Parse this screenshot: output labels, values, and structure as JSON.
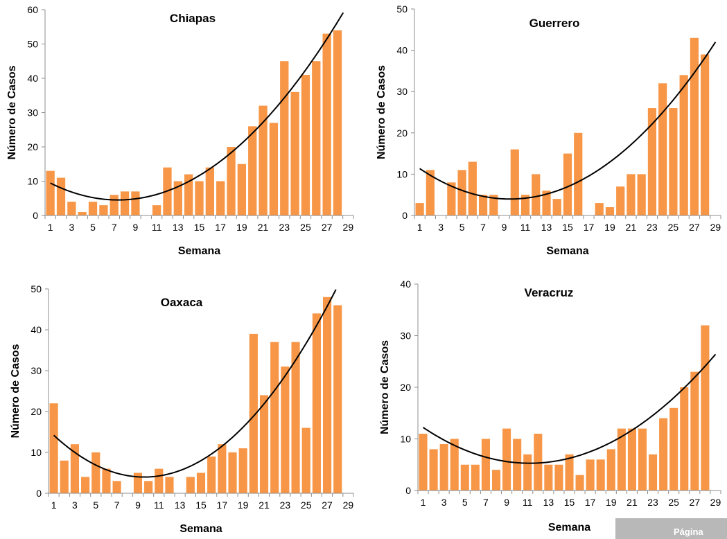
{
  "page_footer": "Página",
  "colors": {
    "bar": "#f79646",
    "trend": "#000000",
    "axis": "#8c8c8c"
  },
  "chart_data": [
    {
      "type": "bar",
      "title": "Chiapas",
      "xlabel": "Semana",
      "ylabel": "Número de Casos",
      "ylim": [
        0,
        60
      ],
      "yticks": [
        0,
        10,
        20,
        30,
        40,
        50,
        60
      ],
      "xticks": [
        1,
        3,
        5,
        7,
        9,
        11,
        13,
        15,
        17,
        19,
        21,
        23,
        25,
        27,
        29
      ],
      "categories": [
        1,
        2,
        3,
        4,
        5,
        6,
        7,
        8,
        9,
        10,
        11,
        12,
        13,
        14,
        15,
        16,
        17,
        18,
        19,
        20,
        21,
        22,
        23,
        24,
        25,
        26,
        27,
        28,
        29
      ],
      "values": [
        13,
        11,
        4,
        1,
        4,
        3,
        6,
        7,
        7,
        0,
        3,
        14,
        10,
        12,
        10,
        14,
        10,
        20,
        15,
        26,
        32,
        27,
        45,
        36,
        41,
        45,
        53,
        54,
        null
      ],
      "trendline": "polynomial (order 2)"
    },
    {
      "type": "bar",
      "title": "Guerrero",
      "xlabel": "Semana",
      "ylabel": "Número de Casos",
      "ylim": [
        0,
        50
      ],
      "yticks": [
        0,
        10,
        20,
        30,
        40,
        50
      ],
      "xticks": [
        1,
        3,
        5,
        7,
        9,
        11,
        13,
        15,
        17,
        19,
        21,
        23,
        25,
        27,
        29
      ],
      "categories": [
        1,
        2,
        3,
        4,
        5,
        6,
        7,
        8,
        9,
        10,
        11,
        12,
        13,
        14,
        15,
        16,
        17,
        18,
        19,
        20,
        21,
        22,
        23,
        24,
        25,
        26,
        27,
        28,
        29
      ],
      "values": [
        3,
        11,
        0,
        8,
        11,
        13,
        5,
        5,
        0,
        16,
        5,
        10,
        6,
        4,
        15,
        20,
        0,
        3,
        2,
        7,
        10,
        10,
        26,
        32,
        26,
        34,
        43,
        39,
        null
      ],
      "trendline": "polynomial (order 2)"
    },
    {
      "type": "bar",
      "title": "Oaxaca",
      "xlabel": "Semana",
      "ylabel": "Número de Casos",
      "ylim": [
        0,
        50
      ],
      "yticks": [
        0,
        10,
        20,
        30,
        40,
        50
      ],
      "xticks": [
        1,
        3,
        5,
        7,
        9,
        11,
        13,
        15,
        17,
        19,
        21,
        23,
        25,
        27,
        29
      ],
      "categories": [
        1,
        2,
        3,
        4,
        5,
        6,
        7,
        8,
        9,
        10,
        11,
        12,
        13,
        14,
        15,
        16,
        17,
        18,
        19,
        20,
        21,
        22,
        23,
        24,
        25,
        26,
        27,
        28,
        29
      ],
      "values": [
        22,
        8,
        12,
        4,
        10,
        6,
        3,
        0,
        5,
        3,
        6,
        4,
        0,
        4,
        5,
        9,
        12,
        10,
        11,
        39,
        24,
        37,
        31,
        37,
        16,
        44,
        48,
        46,
        null
      ],
      "trendline": "polynomial (order 2)"
    },
    {
      "type": "bar",
      "title": "Veracruz",
      "xlabel": "Semana",
      "ylabel": "Número de Casos",
      "ylim": [
        0,
        40
      ],
      "yticks": [
        0,
        10,
        20,
        30,
        40
      ],
      "xticks": [
        1,
        3,
        5,
        7,
        9,
        11,
        13,
        15,
        17,
        19,
        21,
        23,
        25,
        27,
        29
      ],
      "categories": [
        1,
        2,
        3,
        4,
        5,
        6,
        7,
        8,
        9,
        10,
        11,
        12,
        13,
        14,
        15,
        16,
        17,
        18,
        19,
        20,
        21,
        22,
        23,
        24,
        25,
        26,
        27,
        28,
        29
      ],
      "values": [
        11,
        8,
        9,
        10,
        5,
        5,
        10,
        4,
        12,
        10,
        7,
        11,
        5,
        5,
        7,
        3,
        6,
        6,
        8,
        12,
        12,
        12,
        7,
        14,
        16,
        20,
        23,
        32,
        null
      ],
      "trendline": "polynomial (order 2)"
    }
  ]
}
